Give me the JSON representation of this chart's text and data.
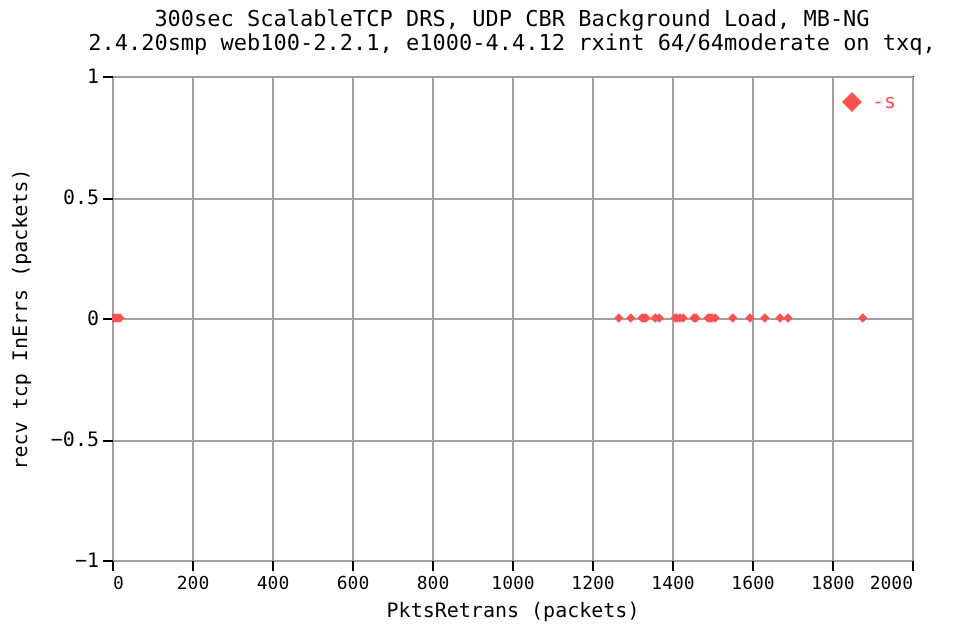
{
  "chart_data": {
    "type": "scatter",
    "title": "300sec ScalableTCP DRS, UDP CBR Background Load, MB-NG",
    "subtitle": "2.4.20smp web100-2.2.1, e1000-4.4.12 rxint 64/64moderate on txq,",
    "xlabel": "PktsRetrans (packets)",
    "ylabel": "recv tcp InErrs (packets)",
    "series": [
      {
        "name": "-s",
        "color": "#ff4f4f",
        "x": [
          0,
          5,
          10,
          15,
          20,
          1267,
          1297,
          1325,
          1330,
          1335,
          1358,
          1368,
          1408,
          1412,
          1420,
          1428,
          1455,
          1460,
          1490,
          1495,
          1500,
          1508,
          1552,
          1595,
          1632,
          1670,
          1690,
          1877
        ],
        "values": [
          0,
          0,
          0,
          0,
          0,
          0,
          0,
          0,
          0,
          0,
          0,
          0,
          0,
          0,
          0,
          0,
          0,
          0,
          0,
          0,
          0,
          0,
          0,
          0,
          0,
          0,
          0,
          0
        ]
      }
    ],
    "xlim": [
      0,
      2000
    ],
    "xticks": [
      0,
      200,
      400,
      600,
      800,
      1000,
      1200,
      1400,
      1600,
      1800,
      2000
    ],
    "ylim": [
      -1,
      1
    ],
    "yticks": [
      -1,
      -0.5,
      0,
      0.5,
      1
    ],
    "grid": true,
    "legend": "top right",
    "marker": "diamond"
  }
}
